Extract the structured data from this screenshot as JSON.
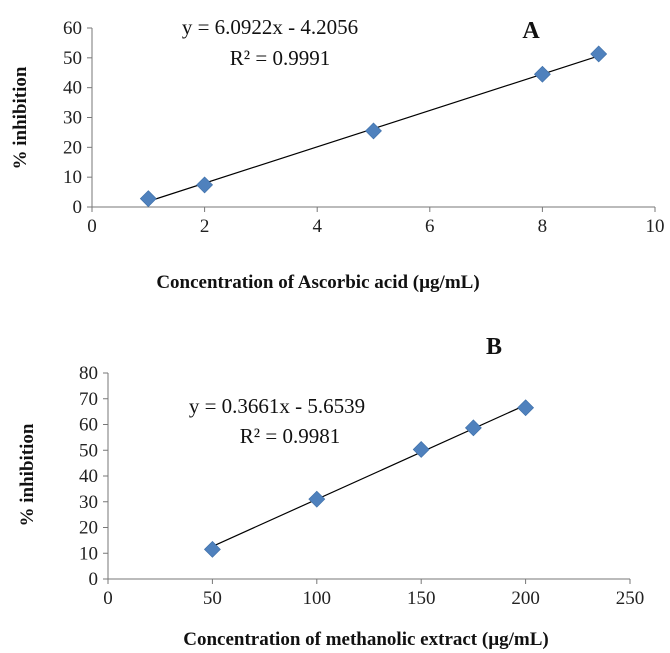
{
  "chart_data": [
    {
      "type": "scatter",
      "panel_label": "A",
      "xlabel": "Concentration of Ascorbic acid (µg/mL)",
      "ylabel": "% inhibition",
      "xlim": [
        0,
        10
      ],
      "ylim": [
        0,
        60
      ],
      "xticks": [
        0,
        2,
        4,
        6,
        8,
        10
      ],
      "yticks": [
        0,
        10,
        20,
        30,
        40,
        50,
        60
      ],
      "grid": false,
      "series": [
        {
          "x": [
            1,
            2,
            5,
            8,
            9
          ],
          "y": [
            2.8,
            7.4,
            25.5,
            44.5,
            51.3
          ],
          "color": "#4F81BD",
          "marker": "diamond"
        }
      ],
      "trendline": {
        "slope": 6.0922,
        "intercept": -4.2056,
        "x_range": [
          1,
          9
        ]
      },
      "equation": "y = 6.0922x - 4.2056",
      "r_squared": "R² = 0.9991"
    },
    {
      "type": "scatter",
      "panel_label": "B",
      "xlabel": "Concentration of methanolic extract (µg/mL)",
      "ylabel": "% inhibition",
      "xlim": [
        0,
        250
      ],
      "ylim": [
        0,
        80
      ],
      "xticks": [
        0,
        50,
        100,
        150,
        200,
        250
      ],
      "yticks": [
        0,
        10,
        20,
        30,
        40,
        50,
        60,
        70,
        80
      ],
      "grid": false,
      "series": [
        {
          "x": [
            50,
            100,
            150,
            175,
            200
          ],
          "y": [
            11.5,
            31,
            50.3,
            58.7,
            66.5
          ],
          "color": "#4F81BD",
          "marker": "diamond"
        }
      ],
      "trendline": {
        "slope": 0.3661,
        "intercept": -5.6539,
        "x_range": [
          50,
          200
        ]
      },
      "equation": "y = 0.3661x - 5.6539",
      "r_squared": "R² = 0.9981"
    }
  ]
}
